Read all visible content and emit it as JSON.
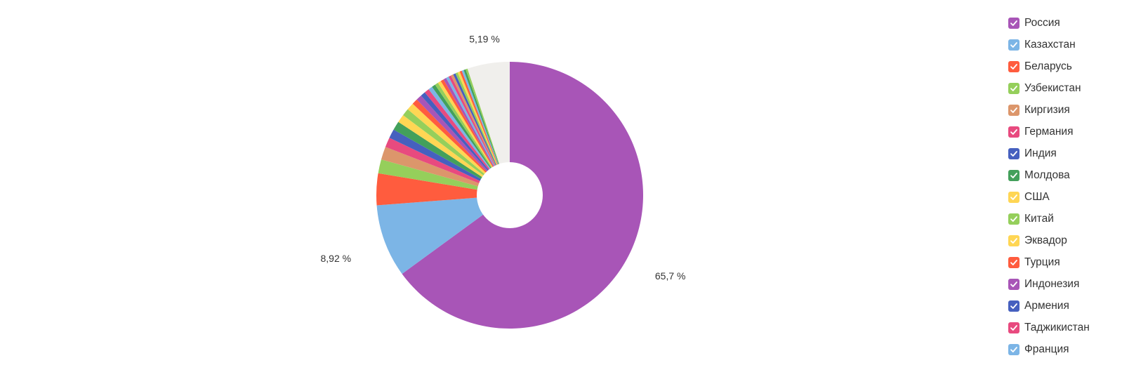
{
  "chart_data": {
    "type": "pie",
    "style": "donut",
    "legend_position": "right",
    "title": "",
    "visible_percent_labels": [
      {
        "slice": "Россия",
        "text": "65,7 %"
      },
      {
        "slice": "Казахстан",
        "text": "8,92 %"
      },
      {
        "slice": "other",
        "text": "5,19 %"
      }
    ],
    "slices": [
      {
        "name": "Россия",
        "value": 65.7,
        "color": "#a855b7"
      },
      {
        "name": "Казахстан",
        "value": 8.92,
        "color": "#7cb5e6"
      },
      {
        "name": "Беларусь",
        "value": 3.9,
        "color": "#ff5c3e"
      },
      {
        "name": "Узбекистан",
        "value": 1.7,
        "color": "#95cf5b"
      },
      {
        "name": "Киргизия",
        "value": 1.6,
        "color": "#dc966b"
      },
      {
        "name": "Германия",
        "value": 1.2,
        "color": "#e84a7f"
      },
      {
        "name": "Индия",
        "value": 1.1,
        "color": "#4660bf"
      },
      {
        "name": "Молдова",
        "value": 1.1,
        "color": "#43a05b"
      },
      {
        "name": "США",
        "value": 1.0,
        "color": "#ffd654"
      },
      {
        "name": "Китай",
        "value": 0.9,
        "color": "#95cf5b"
      },
      {
        "name": "Эквадор",
        "value": 0.9,
        "color": "#ffd654"
      },
      {
        "name": "Турция",
        "value": 0.7,
        "color": "#ff5c3e"
      },
      {
        "name": "Индонезия",
        "value": 0.7,
        "color": "#a855b7"
      },
      {
        "name": "Армения",
        "value": 0.6,
        "color": "#4660bf"
      },
      {
        "name": "Таджикистан",
        "value": 0.6,
        "color": "#e84a7f"
      },
      {
        "name": "Франция",
        "value": 0.5,
        "color": "#7cb5e6"
      },
      {
        "value": 0.45,
        "color": "#43a05b"
      },
      {
        "value": 0.42,
        "color": "#95cf5b"
      },
      {
        "value": 0.4,
        "color": "#ffd654"
      },
      {
        "value": 0.38,
        "color": "#ff5c3e"
      },
      {
        "value": 0.36,
        "color": "#a855b7"
      },
      {
        "value": 0.34,
        "color": "#7cb5e6"
      },
      {
        "value": 0.32,
        "color": "#e84a7f"
      },
      {
        "value": 0.3,
        "color": "#dc966b"
      },
      {
        "value": 0.3,
        "color": "#4660bf"
      },
      {
        "value": 0.28,
        "color": "#95cf5b"
      },
      {
        "value": 0.28,
        "color": "#ffd654"
      },
      {
        "value": 0.26,
        "color": "#ff5c3e"
      },
      {
        "value": 0.25,
        "color": "#7cb5e6"
      },
      {
        "value": 0.25,
        "color": "#43a05b"
      },
      {
        "value": 0.24,
        "color": "#95cf5b"
      },
      {
        "value": 5.19,
        "color": "#f0efec"
      }
    ]
  }
}
